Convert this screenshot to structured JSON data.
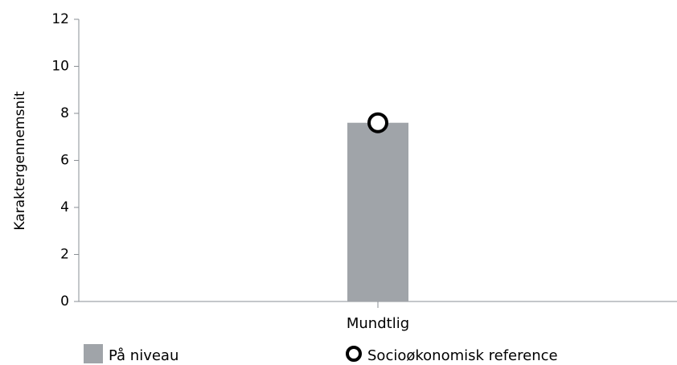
{
  "chart_data": {
    "type": "bar",
    "categories": [
      "Mundtlig"
    ],
    "series": [
      {
        "name": "På niveau",
        "kind": "bar",
        "values": [
          7.6
        ],
        "color": "#a0a4a9"
      },
      {
        "name": "Socioøkonomisk reference",
        "kind": "marker",
        "values": [
          7.6
        ],
        "color": "#000000"
      }
    ],
    "ylabel": "Karaktergennemsnit",
    "xlabel": "",
    "ylim": [
      0,
      12
    ],
    "yticks": [
      "0",
      "2",
      "4",
      "6",
      "8",
      "10",
      "12"
    ],
    "grid": false,
    "legend_position": "bottom"
  },
  "legend": {
    "bar_label": "På niveau",
    "marker_label": "Socioøkonomisk reference"
  }
}
